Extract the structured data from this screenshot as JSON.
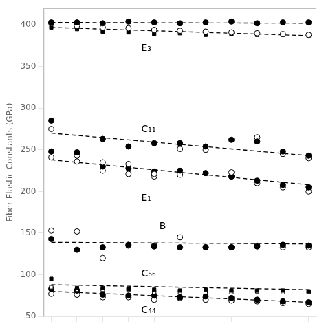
{
  "chart_data": {
    "type": "scatter",
    "ylabel": "Fiber Elastic Constants (GPa)",
    "xlim": [
      -0.3,
      10.3
    ],
    "xticks": [
      0,
      1,
      2,
      3,
      4,
      5,
      6,
      7,
      8,
      9,
      10
    ],
    "ylim": [
      50,
      420
    ],
    "yticks": [
      50,
      100,
      150,
      200,
      250,
      300,
      350,
      400
    ],
    "grid": false,
    "tick_labels": "y",
    "x": [
      0,
      1,
      2,
      3,
      4,
      5,
      6,
      7,
      8,
      9,
      10
    ],
    "series": [
      {
        "type": "scatter",
        "marker": "circle",
        "color": "#000000",
        "values": [
          403,
          403,
          402,
          404,
          403,
          402,
          403,
          404,
          402,
          403,
          403
        ]
      },
      {
        "type": "scatter",
        "marker": "circle",
        "color": "#ffffff",
        "values": [
          402,
          399,
          397,
          396,
          394,
          393,
          392,
          391,
          390,
          389,
          388
        ]
      },
      {
        "type": "scatter",
        "marker": "square",
        "color": "#000000",
        "values": [
          397,
          395,
          392,
          391,
          389,
          390,
          388,
          389,
          388,
          388,
          387
        ]
      },
      {
        "type": "line",
        "line_style": "dashed",
        "color": "#000000",
        "x": [
          0,
          10
        ],
        "values": [
          403,
          402
        ]
      },
      {
        "type": "line",
        "line_style": "dashed",
        "color": "#000000",
        "x": [
          0,
          10
        ],
        "values": [
          397,
          387
        ]
      },
      {
        "type": "scatter",
        "marker": "circle",
        "color": "#000000",
        "values": [
          285,
          247,
          263,
          254,
          258,
          258,
          254,
          262,
          260,
          248,
          243
        ]
      },
      {
        "type": "scatter",
        "marker": "circle",
        "color": "#ffffff",
        "values": [
          275,
          243,
          235,
          233,
          221,
          251,
          250,
          223,
          265,
          245,
          240
        ]
      },
      {
        "type": "line",
        "line_style": "dashed",
        "color": "#000000",
        "x": [
          0,
          10
        ],
        "values": [
          270,
          243
        ]
      },
      {
        "type": "scatter",
        "marker": "circle",
        "color": "#000000",
        "values": [
          248,
          245,
          230,
          228,
          224,
          225,
          222,
          218,
          213,
          208,
          205
        ]
      },
      {
        "type": "scatter",
        "marker": "circle",
        "color": "#ffffff",
        "values": [
          241,
          236,
          225,
          221,
          218,
          220,
          222,
          218,
          210,
          205,
          200
        ]
      },
      {
        "type": "line",
        "line_style": "dashed",
        "color": "#000000",
        "x": [
          0,
          10
        ],
        "values": [
          238,
          208
        ]
      },
      {
        "type": "scatter",
        "marker": "circle",
        "color": "#000000",
        "values": [
          143,
          130,
          133,
          136,
          134,
          133,
          133,
          133,
          134,
          136,
          135
        ]
      },
      {
        "type": "scatter",
        "marker": "circle",
        "color": "#ffffff",
        "values": [
          153,
          152,
          120,
          135,
          135,
          145,
          133,
          133,
          135,
          133,
          133
        ]
      },
      {
        "type": "line",
        "line_style": "dashed",
        "color": "#000000",
        "x": [
          0,
          10
        ],
        "values": [
          139,
          137
        ]
      },
      {
        "type": "scatter",
        "marker": "square",
        "color": "#000000",
        "values": [
          95,
          84,
          84,
          83,
          82,
          81,
          82,
          81,
          81,
          81,
          80
        ]
      },
      {
        "type": "scatter",
        "marker": "square",
        "color": "#ffffff",
        "values": [
          85,
          82,
          82,
          82,
          79,
          79,
          79,
          79,
          80,
          79,
          79
        ]
      },
      {
        "type": "line",
        "line_style": "dashed",
        "color": "#000000",
        "x": [
          0,
          10
        ],
        "values": [
          88,
          82
        ]
      },
      {
        "type": "scatter",
        "marker": "circle",
        "color": "#000000",
        "values": [
          83,
          81,
          76,
          75,
          75,
          73,
          74,
          72,
          70,
          68,
          67
        ]
      },
      {
        "type": "scatter",
        "marker": "circle",
        "color": "#ffffff",
        "values": [
          77,
          76,
          73,
          73,
          70,
          72,
          70,
          69,
          68,
          66,
          65
        ]
      },
      {
        "type": "line",
        "line_style": "dashed",
        "color": "#000000",
        "x": [
          0,
          10
        ],
        "values": [
          80,
          67
        ]
      }
    ],
    "annotations": [
      {
        "text": "E₃",
        "x": 3.5,
        "y": 372
      },
      {
        "text": "C₁₁",
        "x": 3.5,
        "y": 274
      },
      {
        "text": "E₁",
        "x": 3.5,
        "y": 192
      },
      {
        "text": "B",
        "x": 4.2,
        "y": 158
      },
      {
        "text": "C₆₆",
        "x": 3.5,
        "y": 101
      },
      {
        "text": "C₄₄",
        "x": 3.5,
        "y": 57
      }
    ]
  }
}
